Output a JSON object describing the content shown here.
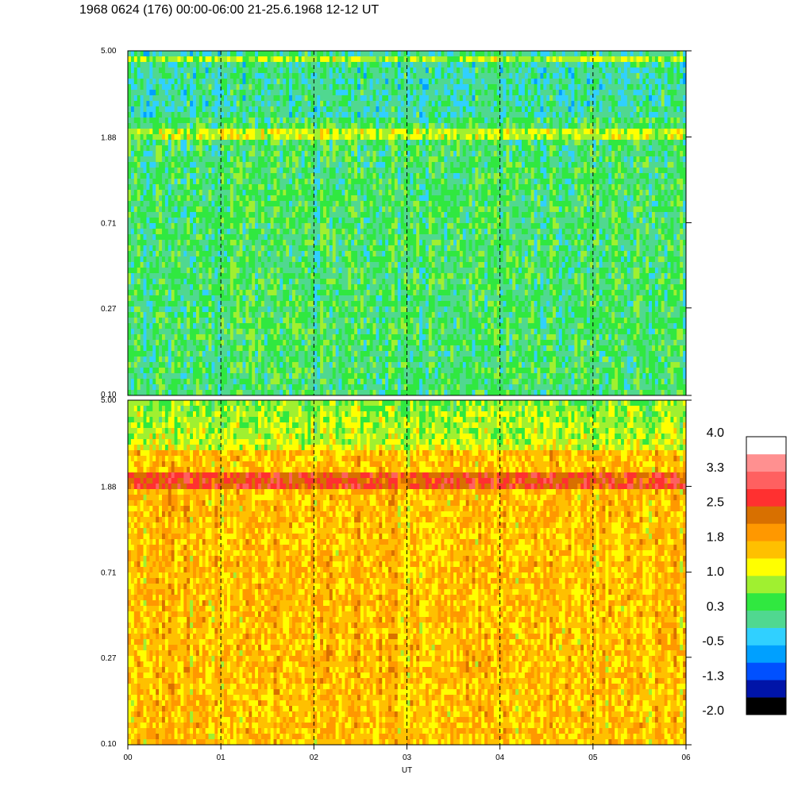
{
  "title": "1968 0624 (176) 00:00-06:00 21-25.6.1968  12-12 UT",
  "chart_data": {
    "type": "heatmap",
    "title": "1968 0624 (176) 00:00-06:00 21-25.6.1968  12-12 UT",
    "xlabel": "UT",
    "ylabel": "",
    "x_ticks": [
      "00",
      "01",
      "02",
      "03",
      "04",
      "05",
      "06"
    ],
    "x_range": [
      0,
      6
    ],
    "y_scale": "log",
    "y_range": [
      0.1,
      5.0
    ],
    "grid": "dashed vertical lines at each hour",
    "panels": [
      {
        "y_ticks": [
          {
            "value": 5.0,
            "label": "5.00"
          },
          {
            "value": 1.88,
            "label": "1.88"
          },
          {
            "value": 0.71,
            "label": "0.71"
          },
          {
            "value": 0.27,
            "label": "0.27"
          },
          {
            "value": 0.1,
            "label": "0.10"
          }
        ],
        "dominant_level": 0.3
      },
      {
        "y_ticks": [
          {
            "value": 5.0,
            "label": "5.00"
          },
          {
            "value": 1.88,
            "label": "1.88"
          },
          {
            "value": 0.71,
            "label": "0.71"
          },
          {
            "value": 0.27,
            "label": "0.27"
          },
          {
            "value": 0.1,
            "label": "0.10"
          }
        ],
        "dominant_level": 1.6
      }
    ],
    "colorbar": {
      "range": [
        -2.0,
        4.0
      ],
      "labels": [
        "4.0",
        "3.3",
        "2.5",
        "1.8",
        "1.0",
        "0.3",
        "-0.5",
        "-1.3",
        "-2.0"
      ],
      "colors": [
        "#000000",
        "#0014a8",
        "#0050ff",
        "#00a0ff",
        "#30d0ff",
        "#50d890",
        "#30e840",
        "#a0f030",
        "#ffff00",
        "#ffc000",
        "#ff9800",
        "#d87000",
        "#ff3030",
        "#ff6060",
        "#ff9090",
        "#ffffff"
      ]
    }
  }
}
